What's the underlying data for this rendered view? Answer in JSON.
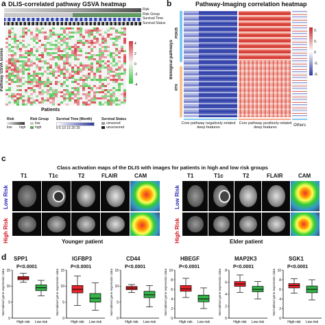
{
  "panel_a": {
    "label": "a",
    "title": "DLIS-correlated pathway GSVA heatmap",
    "tracks": [
      "Risk",
      "Risk Group",
      "Survival Time",
      "Survival Status"
    ],
    "ylabel": "Pathway GSVA scores",
    "xlabel": "Patients",
    "scale_ticks": [
      "4",
      "2",
      "0",
      "-2",
      "-4"
    ],
    "legend": {
      "risk_title": "Risk",
      "risk_low": "low",
      "risk_high": "high",
      "group_title": "Risk Group",
      "group_low": "low",
      "group_high": "high",
      "time_title": "Survival Time (Month)",
      "time_ticks": "0 5 10 15 20 25",
      "status_title": "Survival Status",
      "status_censored": "censored",
      "status_uncensored": "uncensored"
    },
    "colors": {
      "high": "#d9434b",
      "low": "#3ec43e",
      "mid": "#f4f4f4"
    }
  },
  "panel_b": {
    "label": "b",
    "title": "Pathway-Imaging correlation heatmap",
    "ylabel": "Biological pathways",
    "row_groups": [
      "PI3K/B",
      "RTK"
    ],
    "col_groups": [
      "Core pathway negatively-related deep features",
      "Core pathway positively-related deep features",
      "Others"
    ],
    "scale_ticks": [
      "0.",
      "0.",
      "0",
      "-0.",
      "-0."
    ],
    "colors": {
      "pos": "#d73027",
      "neg": "#2c3aa0",
      "mid": "#ffffff"
    }
  },
  "panel_c": {
    "label": "c",
    "title": "Class activation maps of the DLIS with images for patients in high and low risk groups",
    "columns": [
      "T1",
      "T1c",
      "T2",
      "FLAIR",
      "CAM"
    ],
    "rows": [
      "Low Risk",
      "High Risk"
    ],
    "young_caption": "Younger patient",
    "elder_caption": "Elder patient"
  },
  "panel_d": {
    "label": "d",
    "ylabel": "Normalised gene expression data",
    "chart_data": [
      {
        "type": "box",
        "title": "SPP1",
        "pvalue": "P<0.0001",
        "categories": [
          "High risk",
          "Low risk"
        ],
        "yticks": [
          "0",
          "5",
          "10",
          "15"
        ],
        "ylim": [
          0,
          15
        ],
        "boxes": [
          {
            "min": 11.2,
            "q1": 12.0,
            "median": 12.5,
            "q3": 13.0,
            "max": 14.0
          },
          {
            "min": 7.0,
            "q1": 8.6,
            "median": 9.5,
            "q3": 10.4,
            "max": 11.8
          }
        ]
      },
      {
        "type": "box",
        "title": "IGFBP3",
        "pvalue": "P<0.0001",
        "categories": [
          "High risk",
          "Low risk"
        ],
        "yticks": [
          "0",
          "5",
          "10",
          "15"
        ],
        "ylim": [
          0,
          15
        ],
        "boxes": [
          {
            "min": 4.0,
            "q1": 7.9,
            "median": 9.0,
            "q3": 10.2,
            "max": 13.2
          },
          {
            "min": 2.5,
            "q1": 5.0,
            "median": 6.2,
            "q3": 7.7,
            "max": 11.0
          }
        ]
      },
      {
        "type": "box",
        "title": "CD44",
        "pvalue": "P<0.0001",
        "categories": [
          "High risk",
          "Low risk"
        ],
        "yticks": [
          "0",
          "5",
          "10",
          "15"
        ],
        "ylim": [
          0,
          15
        ],
        "boxes": [
          {
            "min": 8.0,
            "q1": 8.9,
            "median": 9.4,
            "q3": 9.9,
            "max": 10.5
          },
          {
            "min": 3.5,
            "q1": 6.4,
            "median": 7.3,
            "q3": 8.4,
            "max": 10.2
          }
        ]
      },
      {
        "type": "box",
        "title": "HBEGF",
        "pvalue": "P<0.0001",
        "categories": [
          "High risk",
          "Low risk"
        ],
        "yticks": [
          "0",
          "2",
          "4",
          "6",
          "8",
          "10"
        ],
        "ylim": [
          0,
          10
        ],
        "boxes": [
          {
            "min": 4.3,
            "q1": 5.6,
            "median": 6.1,
            "q3": 6.8,
            "max": 8.3
          },
          {
            "min": 2.0,
            "q1": 3.4,
            "median": 4.0,
            "q3": 4.8,
            "max": 6.3
          }
        ]
      },
      {
        "type": "box",
        "title": "MAP2K3",
        "pvalue": "P<0.0001",
        "categories": [
          "High risk",
          "Low risk"
        ],
        "yticks": [
          "0",
          "2",
          "4",
          "6",
          "8"
        ],
        "ylim": [
          0,
          8
        ],
        "boxes": [
          {
            "min": 4.3,
            "q1": 5.3,
            "median": 5.7,
            "q3": 6.1,
            "max": 7.2
          },
          {
            "min": 3.2,
            "q1": 4.4,
            "median": 4.8,
            "q3": 5.3,
            "max": 6.1
          }
        ]
      },
      {
        "type": "box",
        "title": "SGK1",
        "pvalue": "P<0.0001",
        "categories": [
          "High risk",
          "Low risk"
        ],
        "yticks": [
          "0",
          "2",
          "4",
          "6",
          "8",
          "10"
        ],
        "ylim": [
          0,
          10
        ],
        "boxes": [
          {
            "min": 5.2,
            "q1": 6.3,
            "median": 6.8,
            "q3": 7.2,
            "max": 8.2
          },
          {
            "min": 3.8,
            "q1": 5.3,
            "median": 6.0,
            "q3": 6.7,
            "max": 8.0
          }
        ]
      }
    ],
    "colors": {
      "high": "#e8232a",
      "low": "#35b34a"
    }
  }
}
